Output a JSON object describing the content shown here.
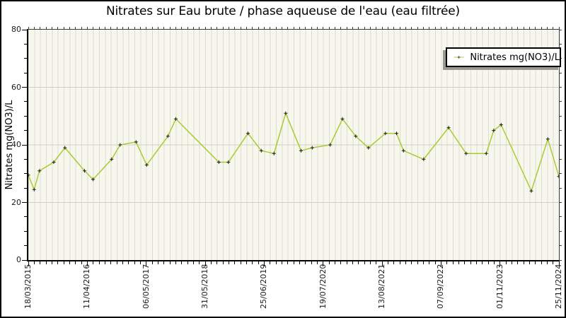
{
  "window": {
    "background": "#ffffff",
    "border_color": "#000000"
  },
  "chart_data": {
    "type": "line",
    "title": "Nitrates sur Eau brute / phase aqueuse de l'eau (eau filtrée)",
    "xlabel": "",
    "ylabel": "Nitrates mg(NO3)/L",
    "ylim": [
      0,
      80
    ],
    "yticks": [
      0,
      20,
      40,
      60,
      80
    ],
    "y_minor_step": 5,
    "x_tick_labels": [
      "18/03/2015",
      "11/04/2016",
      "06/05/2017",
      "31/05/2018",
      "25/06/2019",
      "19/07/2020",
      "13/08/2021",
      "07/09/2022",
      "01/11/2023",
      "25/11/2024"
    ],
    "x_minor_per_major": 10,
    "grid": {
      "vertical_minor": true,
      "horizontal_major": true
    },
    "legend_position": "top-right",
    "plot_bg": "#f7f7ee",
    "stripe_color": "#ddddd2",
    "hgrid_color": "#cfcfc4",
    "series": [
      {
        "name": "Nitrates mg(NO3)/L",
        "color": "#a8cc33",
        "marker": "+",
        "marker_color": "#1a1a1a",
        "points_note": "x is fraction of the time axis from 18/03/2015 (0.0) to 25/11/2024 (1.0); y in mg(NO3)/L",
        "points": [
          [
            0.0,
            29.5
          ],
          [
            0.011,
            24.5
          ],
          [
            0.021,
            31
          ],
          [
            0.048,
            34
          ],
          [
            0.069,
            39
          ],
          [
            0.106,
            31
          ],
          [
            0.122,
            28
          ],
          [
            0.157,
            35
          ],
          [
            0.173,
            40
          ],
          [
            0.203,
            41
          ],
          [
            0.223,
            33
          ],
          [
            0.263,
            43
          ],
          [
            0.278,
            49
          ],
          [
            0.359,
            34
          ],
          [
            0.377,
            34
          ],
          [
            0.414,
            44
          ],
          [
            0.439,
            38
          ],
          [
            0.463,
            37
          ],
          [
            0.485,
            51
          ],
          [
            0.514,
            38
          ],
          [
            0.535,
            39
          ],
          [
            0.569,
            40
          ],
          [
            0.592,
            49
          ],
          [
            0.617,
            43
          ],
          [
            0.641,
            39
          ],
          [
            0.673,
            44
          ],
          [
            0.694,
            44
          ],
          [
            0.707,
            38
          ],
          [
            0.745,
            35
          ],
          [
            0.792,
            46
          ],
          [
            0.825,
            37
          ],
          [
            0.863,
            37
          ],
          [
            0.877,
            45
          ],
          [
            0.891,
            47
          ],
          [
            0.948,
            24
          ],
          [
            0.979,
            42
          ],
          [
            1.0,
            29
          ]
        ]
      }
    ]
  }
}
